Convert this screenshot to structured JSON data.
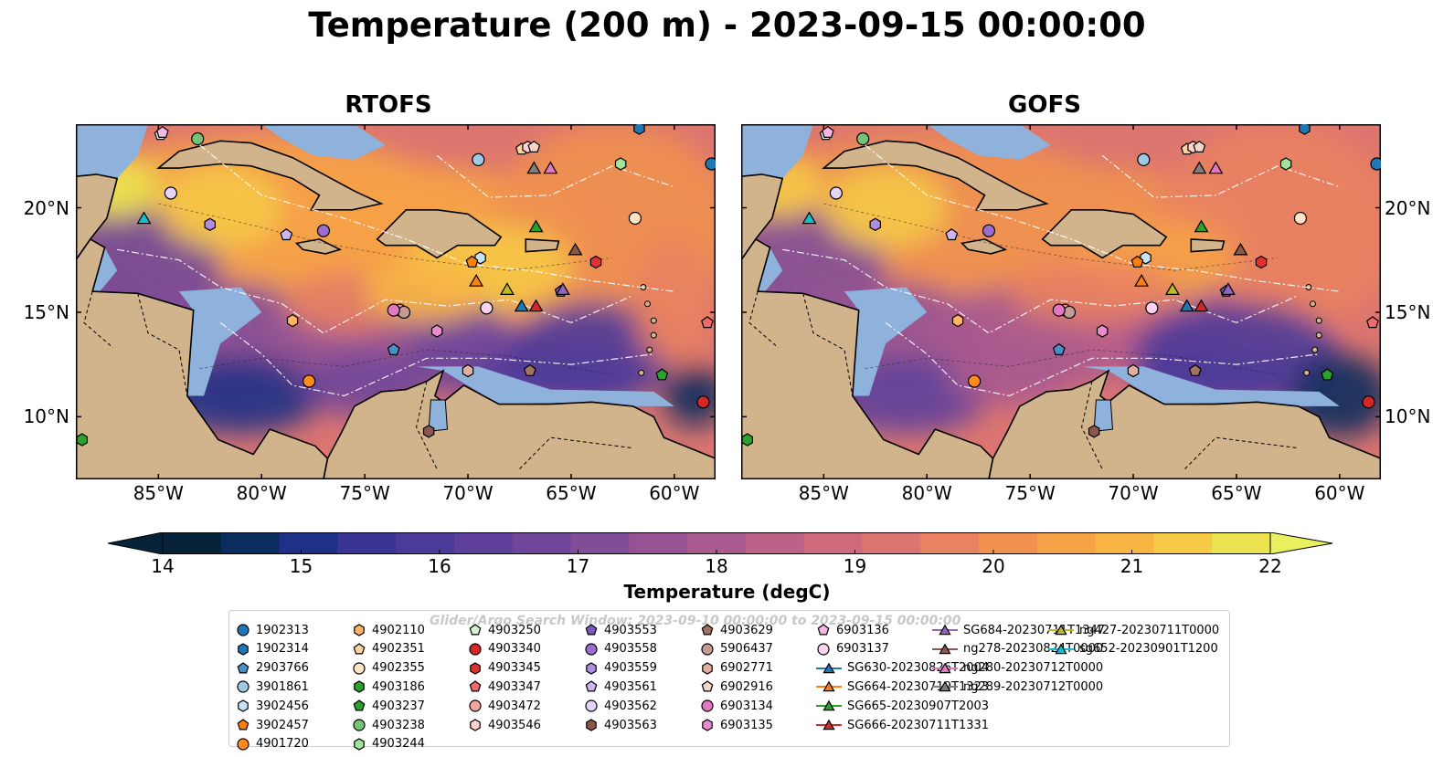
{
  "title": "Temperature (200 m) - 2023-09-15 00:00:00",
  "panels": [
    "RTOFS",
    "GOFS"
  ],
  "lon_ticks": [
    "85°W",
    "80°W",
    "75°W",
    "70°W",
    "65°W",
    "60°W"
  ],
  "lat_ticks": [
    "20°N",
    "15°N",
    "10°N"
  ],
  "colorbar": {
    "label": "Temperature (degC)",
    "ticks": [
      "14",
      "15",
      "16",
      "17",
      "18",
      "19",
      "20",
      "21",
      "22"
    ],
    "min": 14,
    "max": 22,
    "colors": [
      "#06233a",
      "#0b2d5e",
      "#1f3187",
      "#3a3595",
      "#4c3a99",
      "#5e409b",
      "#70469a",
      "#824d98",
      "#955394",
      "#a95a8f",
      "#bc6288",
      "#cd6a7c",
      "#dc7570",
      "#e98260",
      "#f09150",
      "#f6a247",
      "#f8b544",
      "#f6c947",
      "#ebe34f"
    ],
    "extend_low_color": "#06233a",
    "extend_high_color": "#e8f060"
  },
  "legend_note": "Glider/Argo Search Window: 2023-09-10 00:00:00 to 2023-09-15 00:00:00",
  "legend": [
    {
      "label": "1902313",
      "shape": "circle",
      "color": "#1f77b4"
    },
    {
      "label": "1902314",
      "shape": "hexagon",
      "color": "#1f77b4"
    },
    {
      "label": "2903766",
      "shape": "pentagon",
      "color": "#4a90c8"
    },
    {
      "label": "3901861",
      "shape": "circle",
      "color": "#9ecae1"
    },
    {
      "label": "3902456",
      "shape": "hexagon",
      "color": "#c6e4f5"
    },
    {
      "label": "3902457",
      "shape": "pentagon",
      "color": "#ff7f0e"
    },
    {
      "label": "4901720",
      "shape": "circle",
      "color": "#ff8c1a"
    },
    {
      "label": "4902110",
      "shape": "hexagon",
      "color": "#ffb366"
    },
    {
      "label": "4902351",
      "shape": "pentagon",
      "color": "#ffd1a3"
    },
    {
      "label": "4902355",
      "shape": "circle",
      "color": "#ffe4c4"
    },
    {
      "label": "4903186",
      "shape": "hexagon",
      "color": "#2ca02c"
    },
    {
      "label": "4903237",
      "shape": "pentagon",
      "color": "#2ca02c"
    },
    {
      "label": "4903238",
      "shape": "circle",
      "color": "#74c476"
    },
    {
      "label": "4903244",
      "shape": "hexagon",
      "color": "#a1e39a"
    },
    {
      "label": "4903250",
      "shape": "pentagon",
      "color": "#d4f5cf"
    },
    {
      "label": "4903340",
      "shape": "circle",
      "color": "#d62728"
    },
    {
      "label": "4903345",
      "shape": "hexagon",
      "color": "#e03030"
    },
    {
      "label": "4903347",
      "shape": "pentagon",
      "color": "#ef6a6a"
    },
    {
      "label": "4903472",
      "shape": "circle",
      "color": "#f4a3a3"
    },
    {
      "label": "4903546",
      "shape": "hexagon",
      "color": "#ffd0d0"
    },
    {
      "label": "4903553",
      "shape": "pentagon",
      "color": "#7e57c2"
    },
    {
      "label": "4903558",
      "shape": "circle",
      "color": "#9c6ccf"
    },
    {
      "label": "4903559",
      "shape": "hexagon",
      "color": "#b08de0"
    },
    {
      "label": "4903561",
      "shape": "pentagon",
      "color": "#cdb5f0"
    },
    {
      "label": "4903562",
      "shape": "circle",
      "color": "#e3d4fa"
    },
    {
      "label": "4903563",
      "shape": "hexagon",
      "color": "#8c564b"
    },
    {
      "label": "4903629",
      "shape": "pentagon",
      "color": "#a0725f"
    },
    {
      "label": "5906437",
      "shape": "circle",
      "color": "#c49c94"
    },
    {
      "label": "6902771",
      "shape": "hexagon",
      "color": "#e0b0a0"
    },
    {
      "label": "6902916",
      "shape": "pentagon",
      "color": "#f5d5c8"
    },
    {
      "label": "6903134",
      "shape": "circle",
      "color": "#e377c2"
    },
    {
      "label": "6903135",
      "shape": "hexagon",
      "color": "#e98bd0"
    },
    {
      "label": "6903136",
      "shape": "pentagon",
      "color": "#f4b6e4"
    },
    {
      "label": "6903137",
      "shape": "circle",
      "color": "#fbd3f0"
    },
    {
      "label": "SG630-20230826T2004",
      "shape": "triangle-line",
      "color": "#1f77b4"
    },
    {
      "label": "SG664-20230719T1323",
      "shape": "triangle-line",
      "color": "#ff7f0e"
    },
    {
      "label": "SG665-20230907T2003",
      "shape": "triangle-line",
      "color": "#2ca02c"
    },
    {
      "label": "SG666-20230711T1331",
      "shape": "triangle-line",
      "color": "#d62728"
    },
    {
      "label": "SG684-20230711T1347",
      "shape": "triangle-line",
      "color": "#9467bd"
    },
    {
      "label": "ng278-20230824T0000",
      "shape": "triangle-line",
      "color": "#8c564b"
    },
    {
      "label": "ng280-20230712T0000",
      "shape": "triangle-line",
      "color": "#e377c2"
    },
    {
      "label": "ng289-20230712T0000",
      "shape": "triangle-line",
      "color": "#7f7f7f"
    },
    {
      "label": "ng427-20230711T0000",
      "shape": "triangle-line",
      "color": "#bcbd22"
    },
    {
      "label": "sg652-20230901T1200",
      "shape": "triangle-line",
      "color": "#17becf"
    }
  ],
  "map_extent": {
    "lon": [
      -89,
      -58
    ],
    "lat": [
      7,
      24
    ]
  },
  "floats": [
    {
      "id": "1902313",
      "lon": -58.2,
      "lat": 22.1
    },
    {
      "id": "1902314",
      "lon": -61.7,
      "lat": 23.8
    },
    {
      "id": "2903766",
      "lon": -73.6,
      "lat": 13.2
    },
    {
      "id": "3901861",
      "lon": -69.5,
      "lat": 22.3
    },
    {
      "id": "3902456",
      "lon": -69.4,
      "lat": 17.6
    },
    {
      "id": "3902457",
      "lon": -69.8,
      "lat": 17.4
    },
    {
      "id": "4901720",
      "lon": -77.7,
      "lat": 11.7
    },
    {
      "id": "4902110",
      "lon": -78.5,
      "lat": 14.6
    },
    {
      "id": "4902351",
      "lon": -67.4,
      "lat": 22.8
    },
    {
      "id": "4902355",
      "lon": -61.9,
      "lat": 19.5
    },
    {
      "id": "4903186",
      "lon": -88.7,
      "lat": 8.9
    },
    {
      "id": "4903237",
      "lon": -60.6,
      "lat": 12.0
    },
    {
      "id": "4903238",
      "lon": -83.1,
      "lat": 23.3
    },
    {
      "id": "4903244",
      "lon": -62.6,
      "lat": 22.1
    },
    {
      "id": "4903250",
      "lon": -84.9,
      "lat": 23.5
    },
    {
      "id": "4903340",
      "lon": -58.6,
      "lat": 10.7
    },
    {
      "id": "4903345",
      "lon": -63.8,
      "lat": 17.4
    },
    {
      "id": "4903347",
      "lon": -58.4,
      "lat": 14.5
    },
    {
      "id": "4903472",
      "lon": -73.3,
      "lat": 15.1
    },
    {
      "id": "4903546",
      "lon": -67.1,
      "lat": 22.9
    },
    {
      "id": "4903553",
      "lon": -65.5,
      "lat": 16.0
    },
    {
      "id": "4903558",
      "lon": -77.0,
      "lat": 18.9
    },
    {
      "id": "4903559",
      "lon": -82.5,
      "lat": 19.2
    },
    {
      "id": "4903561",
      "lon": -78.8,
      "lat": 18.7
    },
    {
      "id": "4903562",
      "lon": -84.4,
      "lat": 20.7
    },
    {
      "id": "4903563",
      "lon": -71.9,
      "lat": 9.3
    },
    {
      "id": "4903629",
      "lon": -67.0,
      "lat": 12.2
    },
    {
      "id": "5906437",
      "lon": -73.1,
      "lat": 15.0
    },
    {
      "id": "6902771",
      "lon": -70.0,
      "lat": 12.2
    },
    {
      "id": "6902916",
      "lon": -66.8,
      "lat": 22.9
    },
    {
      "id": "6903134",
      "lon": -73.6,
      "lat": 15.1
    },
    {
      "id": "6903135",
      "lon": -71.5,
      "lat": 14.1
    },
    {
      "id": "6903136",
      "lon": -84.8,
      "lat": 23.6
    },
    {
      "id": "6903137",
      "lon": -69.1,
      "lat": 15.2
    }
  ],
  "gliders": [
    {
      "id": "SG630-20230826T2004",
      "lon": -67.4,
      "lat": 15.3
    },
    {
      "id": "SG664-20230719T1323",
      "lon": -69.6,
      "lat": 16.5
    },
    {
      "id": "SG665-20230907T2003",
      "lon": -66.7,
      "lat": 19.1
    },
    {
      "id": "SG666-20230711T1331",
      "lon": -66.7,
      "lat": 15.3
    },
    {
      "id": "SG684-20230711T1347",
      "lon": -65.4,
      "lat": 16.1
    },
    {
      "id": "ng278-20230824T0000",
      "lon": -64.8,
      "lat": 18.0
    },
    {
      "id": "ng280-20230712T0000",
      "lon": -66.0,
      "lat": 21.9
    },
    {
      "id": "ng289-20230712T0000",
      "lon": -66.8,
      "lat": 21.9
    },
    {
      "id": "ng427-20230711T0000",
      "lon": -68.1,
      "lat": 16.1
    },
    {
      "id": "sg652-20230901T1200",
      "lon": -85.7,
      "lat": 19.5
    }
  ]
}
